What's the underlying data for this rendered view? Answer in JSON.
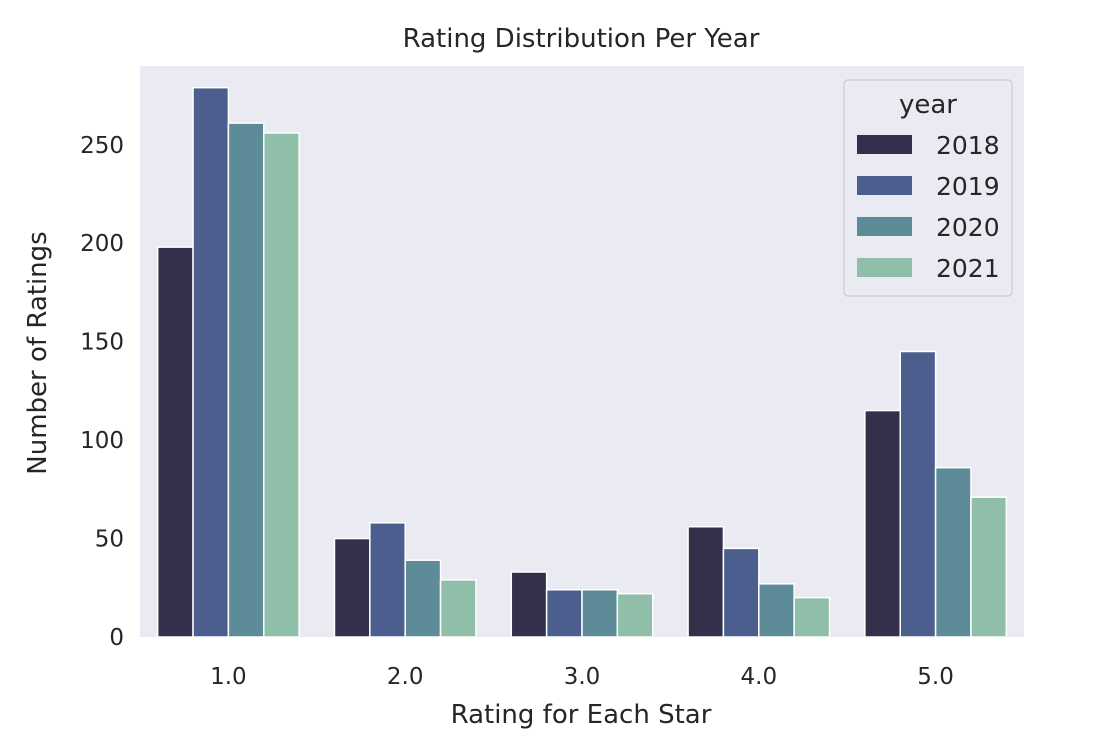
{
  "chart_data": {
    "type": "bar",
    "title": "Rating Distribution Per Year",
    "xlabel": "Rating for Each Star",
    "ylabel": "Number of Ratings",
    "categories": [
      "1.0",
      "2.0",
      "3.0",
      "4.0",
      "5.0"
    ],
    "ylim": [
      0,
      290
    ],
    "yticks": [
      0,
      50,
      100,
      150,
      200,
      250
    ],
    "grid": false,
    "legend": {
      "title": "year",
      "placement": "top-right"
    },
    "series": [
      {
        "name": "2018",
        "color": "#32304a",
        "values": [
          198,
          50,
          33,
          56,
          115
        ]
      },
      {
        "name": "2019",
        "color": "#4b5e8e",
        "values": [
          279,
          58,
          24,
          45,
          145
        ]
      },
      {
        "name": "2020",
        "color": "#5d8b98",
        "values": [
          261,
          39,
          24,
          27,
          86
        ]
      },
      {
        "name": "2021",
        "color": "#8fbfa8",
        "values": [
          256,
          29,
          22,
          20,
          71
        ]
      }
    ],
    "plot_background": "#eaeaf2"
  }
}
